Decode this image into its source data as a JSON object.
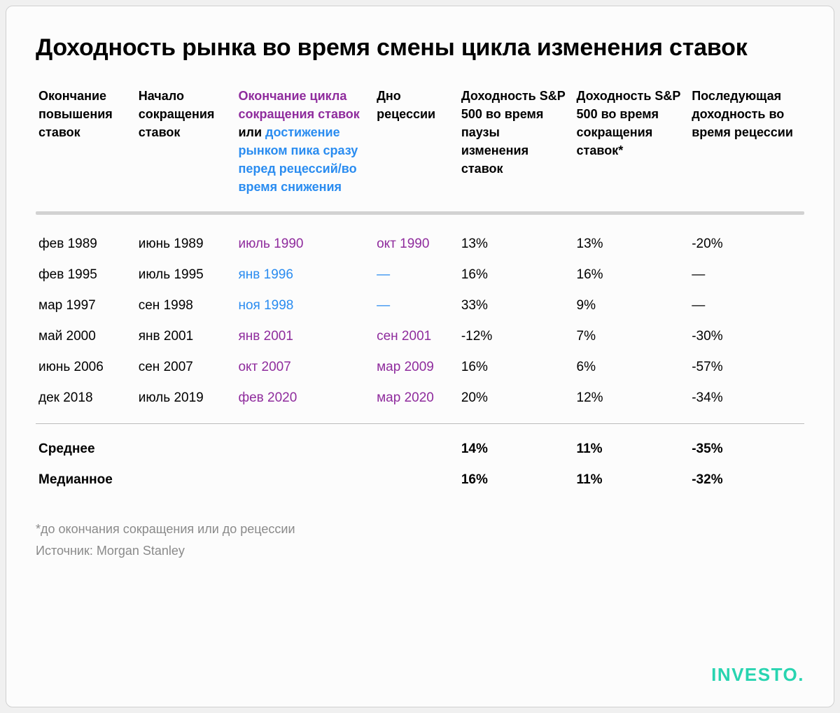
{
  "title": "Доходность рынка во время смены цикла изменения ставок",
  "colors": {
    "text": "#000000",
    "purple": "#8f2c9d",
    "blue": "#2a8cf0",
    "muted": "#8a8a8a",
    "card_bg": "#fcfcfc",
    "card_border": "#d0d0d0",
    "header_sep": "#d2d2d2",
    "body_sep": "#bcbcbc",
    "brand": "#28d4b0"
  },
  "typography": {
    "title_fontsize": 34,
    "header_fontsize": 18,
    "cell_fontsize": 19,
    "footnote_fontsize": 18
  },
  "columns": [
    {
      "key": "c0",
      "label_parts": [
        {
          "text": "Окончание повышения ставок",
          "color": "text"
        }
      ],
      "width": "13%"
    },
    {
      "key": "c1",
      "label_parts": [
        {
          "text": "Начало сокращения ставок",
          "color": "text"
        }
      ],
      "width": "13%"
    },
    {
      "key": "c2",
      "label_parts": [
        {
          "text": "Окончание цикла сокращения ставок",
          "color": "purple"
        },
        {
          "text": " или ",
          "color": "text"
        },
        {
          "text": "достижение рынком пика сразу перед рецессий/во время снижения",
          "color": "blue"
        }
      ],
      "width": "18%"
    },
    {
      "key": "c3",
      "label_parts": [
        {
          "text": "Дно рецессии",
          "color": "text"
        }
      ],
      "width": "11%"
    },
    {
      "key": "c4",
      "label_parts": [
        {
          "text": "Доходность S&P 500 во время паузы изменения ставок",
          "color": "text"
        }
      ],
      "width": "15%"
    },
    {
      "key": "c5",
      "label_parts": [
        {
          "text": "Доходность S&P 500 во время сокращения ставок*",
          "color": "text"
        }
      ],
      "width": "15%"
    },
    {
      "key": "c6",
      "label_parts": [
        {
          "text": "Последующая доходность во время рецессии",
          "color": "text"
        }
      ],
      "width": "15%"
    }
  ],
  "rows": [
    {
      "c0": {
        "v": "фев 1989"
      },
      "c1": {
        "v": "июнь 1989"
      },
      "c2": {
        "v": "июль 1990",
        "color": "purple"
      },
      "c3": {
        "v": "окт 1990",
        "color": "purple"
      },
      "c4": {
        "v": "13%"
      },
      "c5": {
        "v": "13%"
      },
      "c6": {
        "v": "-20%"
      }
    },
    {
      "c0": {
        "v": "фев 1995"
      },
      "c1": {
        "v": "июль 1995"
      },
      "c2": {
        "v": "янв 1996",
        "color": "blue"
      },
      "c3": {
        "v": "—",
        "color": "blue"
      },
      "c4": {
        "v": "16%"
      },
      "c5": {
        "v": "16%"
      },
      "c6": {
        "v": "—"
      }
    },
    {
      "c0": {
        "v": "мар 1997"
      },
      "c1": {
        "v": "сен 1998"
      },
      "c2": {
        "v": "ноя 1998",
        "color": "blue"
      },
      "c3": {
        "v": "—",
        "color": "blue"
      },
      "c4": {
        "v": "33%"
      },
      "c5": {
        "v": "9%"
      },
      "c6": {
        "v": "—"
      }
    },
    {
      "c0": {
        "v": "май 2000"
      },
      "c1": {
        "v": "янв 2001"
      },
      "c2": {
        "v": "янв 2001",
        "color": "purple"
      },
      "c3": {
        "v": "сен 2001",
        "color": "purple"
      },
      "c4": {
        "v": "-12%"
      },
      "c5": {
        "v": "7%"
      },
      "c6": {
        "v": "-30%"
      }
    },
    {
      "c0": {
        "v": "июнь 2006"
      },
      "c1": {
        "v": "сен 2007"
      },
      "c2": {
        "v": "окт 2007",
        "color": "purple"
      },
      "c3": {
        "v": "мар 2009",
        "color": "purple"
      },
      "c4": {
        "v": "16%"
      },
      "c5": {
        "v": "6%"
      },
      "c6": {
        "v": "-57%"
      }
    },
    {
      "c0": {
        "v": "дек 2018"
      },
      "c1": {
        "v": "июль 2019"
      },
      "c2": {
        "v": "фев 2020",
        "color": "purple"
      },
      "c3": {
        "v": "мар 2020",
        "color": "purple"
      },
      "c4": {
        "v": "20%"
      },
      "c5": {
        "v": "12%"
      },
      "c6": {
        "v": "-34%"
      }
    }
  ],
  "summary": [
    {
      "label": "Среднее",
      "c4": "14%",
      "c5": "11%",
      "c6": "-35%"
    },
    {
      "label": "Медианное",
      "c4": "16%",
      "c5": "11%",
      "c6": "-32%"
    }
  ],
  "footnote": "*до окончания сокращения или до рецессии",
  "source": "Источник: Morgan Stanley",
  "brand": "INVESTO",
  "brand_dot": "."
}
